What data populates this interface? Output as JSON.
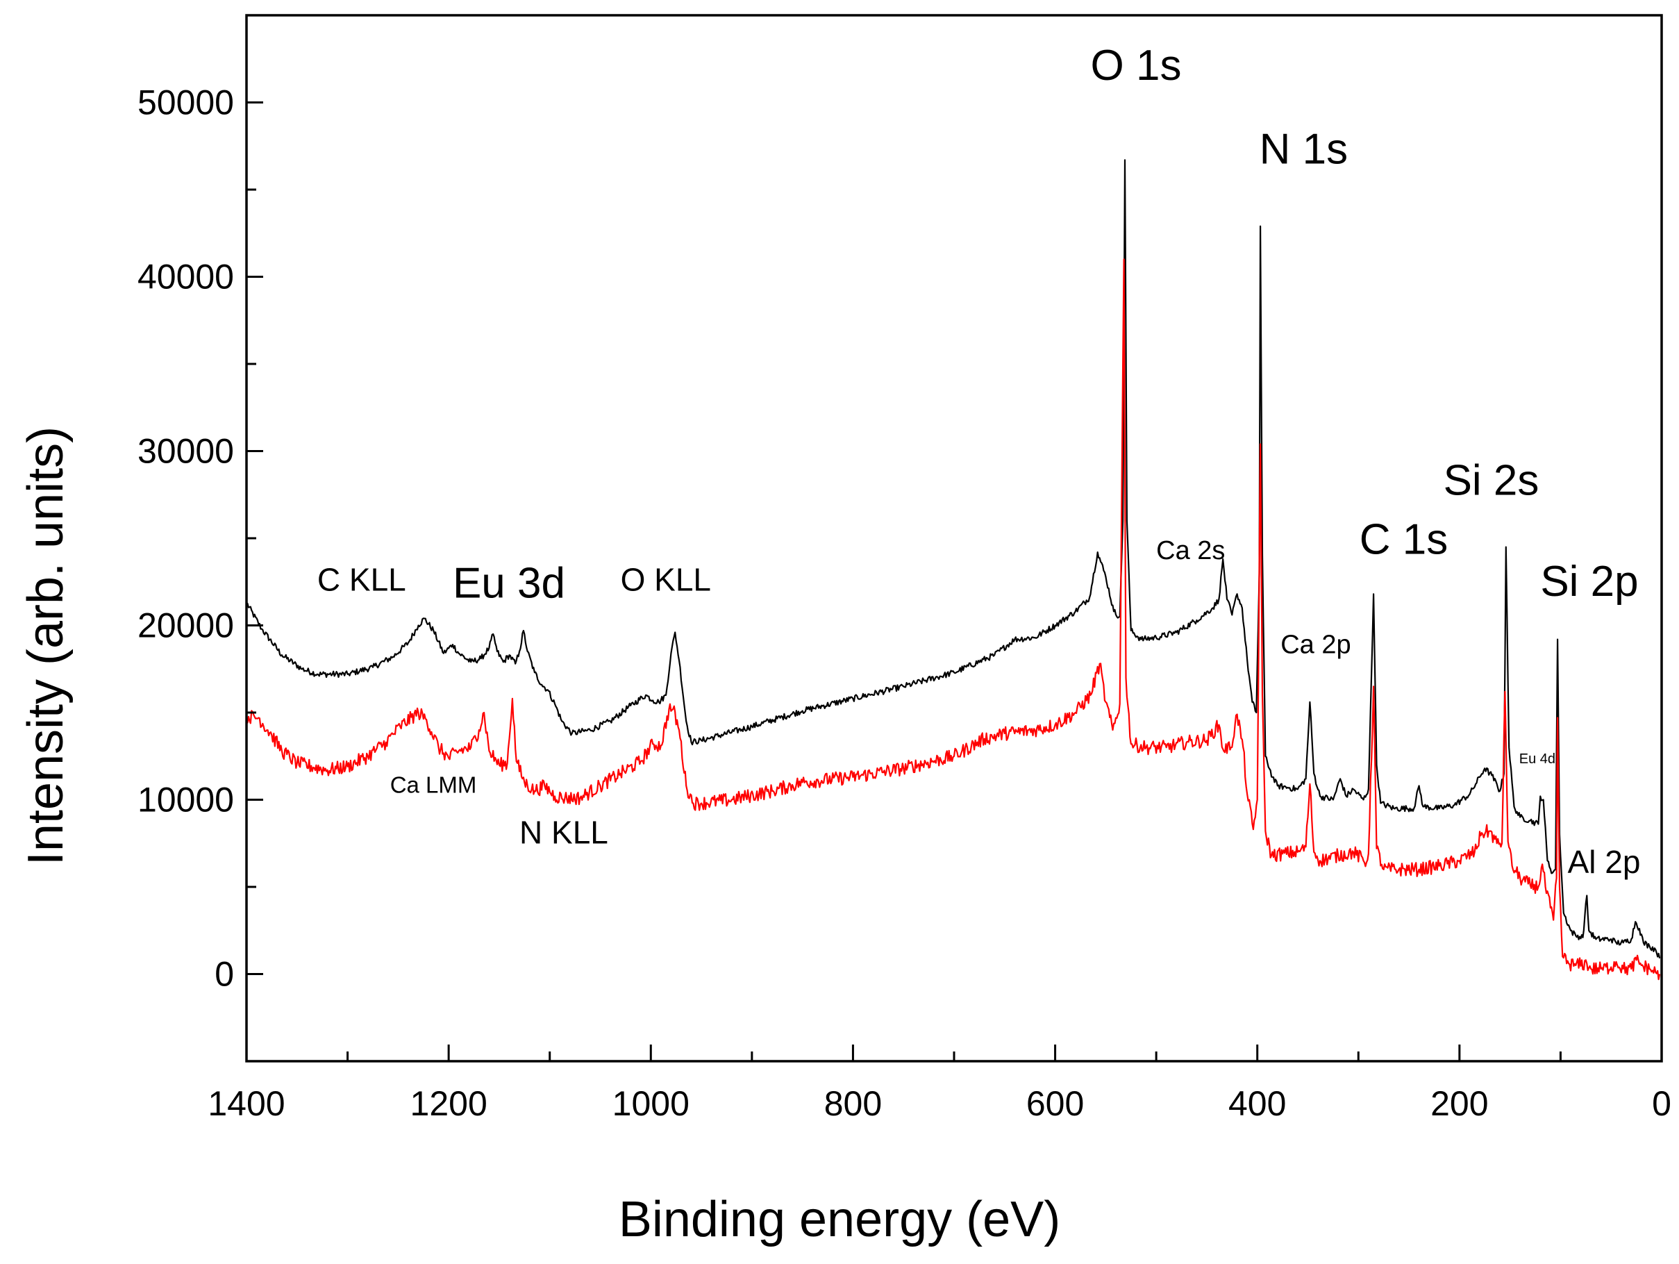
{
  "chart_data": {
    "type": "line",
    "title": "",
    "xlabel": "Binding energy (eV)",
    "ylabel": "Intensity (arb. units)",
    "xlim": [
      1400,
      0
    ],
    "ylim": [
      -5000,
      55000
    ],
    "x_ticks": [
      1400,
      1200,
      1000,
      800,
      600,
      400,
      200,
      0
    ],
    "x_tick_labels": [
      "1400",
      "1200",
      "1000",
      "800",
      "600",
      "400",
      "200",
      "0"
    ],
    "y_ticks": [
      0,
      10000,
      20000,
      30000,
      40000,
      50000
    ],
    "y_tick_labels": [
      "0",
      "10000",
      "20000",
      "30000",
      "40000",
      "50000"
    ],
    "grid": false,
    "series": [
      {
        "name": "black spectrum",
        "color": "#000000",
        "points": [
          [
            1400,
            21300
          ],
          [
            1385,
            19800
          ],
          [
            1365,
            18300
          ],
          [
            1345,
            17500
          ],
          [
            1330,
            17200
          ],
          [
            1300,
            17200
          ],
          [
            1275,
            17600
          ],
          [
            1255,
            18200
          ],
          [
            1240,
            19000
          ],
          [
            1230,
            20000
          ],
          [
            1224,
            20400
          ],
          [
            1215,
            19700
          ],
          [
            1205,
            18400
          ],
          [
            1196,
            18900
          ],
          [
            1190,
            18400
          ],
          [
            1178,
            17900
          ],
          [
            1168,
            18100
          ],
          [
            1160,
            18700
          ],
          [
            1156,
            19500
          ],
          [
            1152,
            18500
          ],
          [
            1146,
            17900
          ],
          [
            1140,
            18300
          ],
          [
            1134,
            17800
          ],
          [
            1130,
            18500
          ],
          [
            1126,
            19700
          ],
          [
            1122,
            18500
          ],
          [
            1115,
            17300
          ],
          [
            1108,
            16600
          ],
          [
            1102,
            16300
          ],
          [
            1095,
            15500
          ],
          [
            1088,
            14500
          ],
          [
            1078,
            13800
          ],
          [
            1060,
            14000
          ],
          [
            1040,
            14500
          ],
          [
            1020,
            15400
          ],
          [
            1005,
            16000
          ],
          [
            998,
            15700
          ],
          [
            992,
            15600
          ],
          [
            985,
            16000
          ],
          [
            980,
            18400
          ],
          [
            976,
            19600
          ],
          [
            972,
            18000
          ],
          [
            965,
            14500
          ],
          [
            960,
            13300
          ],
          [
            950,
            13400
          ],
          [
            900,
            14200
          ],
          [
            850,
            15100
          ],
          [
            800,
            15800
          ],
          [
            750,
            16500
          ],
          [
            700,
            17300
          ],
          [
            660,
            18300
          ],
          [
            640,
            19200
          ],
          [
            620,
            19300
          ],
          [
            600,
            20000
          ],
          [
            580,
            20800
          ],
          [
            566,
            21600
          ],
          [
            558,
            24200
          ],
          [
            550,
            22800
          ],
          [
            542,
            20800
          ],
          [
            536,
            20500
          ],
          [
            533,
            26000
          ],
          [
            531,
            46700
          ],
          [
            529,
            26000
          ],
          [
            525,
            19700
          ],
          [
            515,
            19200
          ],
          [
            500,
            19300
          ],
          [
            480,
            19600
          ],
          [
            460,
            20300
          ],
          [
            444,
            21000
          ],
          [
            438,
            21500
          ],
          [
            434,
            23800
          ],
          [
            430,
            21500
          ],
          [
            425,
            20600
          ],
          [
            420,
            21800
          ],
          [
            415,
            21000
          ],
          [
            410,
            18000
          ],
          [
            405,
            15600
          ],
          [
            401,
            15000
          ],
          [
            398,
            23000
          ],
          [
            397,
            42900
          ],
          [
            395,
            24000
          ],
          [
            392,
            12500
          ],
          [
            385,
            11300
          ],
          [
            380,
            10800
          ],
          [
            370,
            10700
          ],
          [
            360,
            10600
          ],
          [
            352,
            11200
          ],
          [
            348,
            15600
          ],
          [
            344,
            11500
          ],
          [
            338,
            10200
          ],
          [
            325,
            10000
          ],
          [
            318,
            11200
          ],
          [
            312,
            10200
          ],
          [
            305,
            10600
          ],
          [
            295,
            10000
          ],
          [
            290,
            10600
          ],
          [
            285,
            21800
          ],
          [
            282,
            12000
          ],
          [
            278,
            9800
          ],
          [
            265,
            9500
          ],
          [
            245,
            9500
          ],
          [
            240,
            10800
          ],
          [
            236,
            9600
          ],
          [
            220,
            9500
          ],
          [
            205,
            9700
          ],
          [
            190,
            10300
          ],
          [
            180,
            11300
          ],
          [
            175,
            11800
          ],
          [
            168,
            11400
          ],
          [
            160,
            10500
          ],
          [
            156,
            11500
          ],
          [
            154,
            24500
          ],
          [
            151,
            13000
          ],
          [
            146,
            9600
          ],
          [
            140,
            9000
          ],
          [
            130,
            8800
          ],
          [
            122,
            8600
          ],
          [
            120,
            10200
          ],
          [
            117,
            10000
          ],
          [
            113,
            6500
          ],
          [
            108,
            5800
          ],
          [
            105,
            6000
          ],
          [
            103,
            19200
          ],
          [
            101,
            8000
          ],
          [
            97,
            3500
          ],
          [
            90,
            2500
          ],
          [
            85,
            2200
          ],
          [
            78,
            2100
          ],
          [
            74,
            4500
          ],
          [
            72,
            2500
          ],
          [
            65,
            2000
          ],
          [
            50,
            2000
          ],
          [
            45,
            1800
          ],
          [
            38,
            1800
          ],
          [
            30,
            2000
          ],
          [
            26,
            3000
          ],
          [
            22,
            2600
          ],
          [
            18,
            1800
          ],
          [
            12,
            1600
          ],
          [
            6,
            1400
          ],
          [
            2,
            900
          ]
        ]
      },
      {
        "name": "red spectrum",
        "color": "#ff0000",
        "points": [
          [
            1400,
            14800
          ],
          [
            1388,
            14700
          ],
          [
            1375,
            13700
          ],
          [
            1365,
            12800
          ],
          [
            1350,
            12100
          ],
          [
            1320,
            11700
          ],
          [
            1300,
            11900
          ],
          [
            1280,
            12500
          ],
          [
            1262,
            13300
          ],
          [
            1248,
            14200
          ],
          [
            1230,
            15000
          ],
          [
            1222,
            14600
          ],
          [
            1210,
            13000
          ],
          [
            1200,
            12400
          ],
          [
            1190,
            12800
          ],
          [
            1178,
            13000
          ],
          [
            1170,
            14000
          ],
          [
            1165,
            15000
          ],
          [
            1160,
            12800
          ],
          [
            1150,
            12000
          ],
          [
            1142,
            12100
          ],
          [
            1137,
            15800
          ],
          [
            1133,
            12200
          ],
          [
            1125,
            11000
          ],
          [
            1115,
            10500
          ],
          [
            1105,
            10800
          ],
          [
            1095,
            10200
          ],
          [
            1085,
            10100
          ],
          [
            1070,
            10100
          ],
          [
            1050,
            10800
          ],
          [
            1030,
            11500
          ],
          [
            1010,
            12200
          ],
          [
            998,
            13200
          ],
          [
            990,
            13100
          ],
          [
            982,
            15200
          ],
          [
            978,
            15200
          ],
          [
            972,
            14000
          ],
          [
            965,
            10800
          ],
          [
            958,
            9800
          ],
          [
            950,
            9800
          ],
          [
            920,
            10000
          ],
          [
            880,
            10500
          ],
          [
            850,
            11000
          ],
          [
            800,
            11300
          ],
          [
            750,
            11800
          ],
          [
            700,
            12500
          ],
          [
            670,
            13500
          ],
          [
            650,
            13800
          ],
          [
            620,
            14000
          ],
          [
            600,
            14300
          ],
          [
            580,
            15000
          ],
          [
            565,
            16000
          ],
          [
            556,
            17800
          ],
          [
            550,
            15600
          ],
          [
            543,
            14000
          ],
          [
            536,
            15500
          ],
          [
            532,
            41000
          ],
          [
            530,
            17000
          ],
          [
            525,
            13200
          ],
          [
            510,
            13000
          ],
          [
            490,
            13000
          ],
          [
            470,
            13300
          ],
          [
            450,
            13400
          ],
          [
            438,
            14300
          ],
          [
            434,
            12900
          ],
          [
            426,
            13000
          ],
          [
            420,
            14900
          ],
          [
            414,
            13000
          ],
          [
            410,
            10300
          ],
          [
            404,
            8300
          ],
          [
            400,
            10000
          ],
          [
            397,
            30400
          ],
          [
            395,
            16000
          ],
          [
            392,
            8200
          ],
          [
            386,
            6800
          ],
          [
            375,
            6900
          ],
          [
            360,
            7000
          ],
          [
            352,
            7300
          ],
          [
            348,
            10900
          ],
          [
            344,
            7000
          ],
          [
            338,
            6500
          ],
          [
            320,
            6800
          ],
          [
            305,
            7000
          ],
          [
            292,
            6400
          ],
          [
            290,
            6900
          ],
          [
            285,
            16500
          ],
          [
            282,
            7200
          ],
          [
            275,
            6000
          ],
          [
            260,
            6000
          ],
          [
            240,
            6000
          ],
          [
            220,
            6200
          ],
          [
            200,
            6500
          ],
          [
            185,
            7000
          ],
          [
            178,
            8100
          ],
          [
            170,
            8200
          ],
          [
            163,
            7500
          ],
          [
            158,
            7500
          ],
          [
            155,
            16200
          ],
          [
            152,
            7600
          ],
          [
            148,
            6200
          ],
          [
            140,
            5500
          ],
          [
            130,
            5100
          ],
          [
            122,
            5000
          ],
          [
            118,
            6300
          ],
          [
            115,
            5000
          ],
          [
            110,
            3800
          ],
          [
            107,
            3100
          ],
          [
            104,
            5500
          ],
          [
            103,
            14700
          ],
          [
            101,
            5000
          ],
          [
            98,
            1000
          ],
          [
            92,
            600
          ],
          [
            85,
            500
          ],
          [
            74,
            600
          ],
          [
            70,
            300
          ],
          [
            60,
            300
          ],
          [
            50,
            400
          ],
          [
            45,
            700
          ],
          [
            38,
            300
          ],
          [
            30,
            300
          ],
          [
            25,
            800
          ],
          [
            20,
            500
          ],
          [
            12,
            300
          ],
          [
            6,
            100
          ],
          [
            2,
            0
          ]
        ]
      }
    ],
    "annotations": [
      {
        "text": "O 1s",
        "x": 565,
        "y": 51300,
        "size": "xlarge"
      },
      {
        "text": "N 1s",
        "x": 398,
        "y": 46500,
        "size": "xlarge"
      },
      {
        "text": "Si 2s",
        "x": 216,
        "y": 27500,
        "size": "xlarge"
      },
      {
        "text": "C 1s",
        "x": 299,
        "y": 24100,
        "size": "xlarge"
      },
      {
        "text": "Si 2p",
        "x": 120,
        "y": 21700,
        "size": "xlarge"
      },
      {
        "text": "C KLL",
        "x": 1330,
        "y": 22000,
        "size": "large"
      },
      {
        "text": "Eu 3d",
        "x": 1196,
        "y": 21600,
        "size": "xlarge"
      },
      {
        "text": "O KLL",
        "x": 1030,
        "y": 22000,
        "size": "large"
      },
      {
        "text": "Ca 2s",
        "x": 500,
        "y": 23800,
        "size": "medium"
      },
      {
        "text": "Ca 2p",
        "x": 377,
        "y": 18400,
        "size": "medium"
      },
      {
        "text": "Ca LMM",
        "x": 1258,
        "y": 10400,
        "size": "small"
      },
      {
        "text": "N KLL",
        "x": 1130,
        "y": 7500,
        "size": "large"
      },
      {
        "text": "Eu 4d",
        "x": 141,
        "y": 12100,
        "size": "tiny"
      },
      {
        "text": "Al 2p",
        "x": 93,
        "y": 5800,
        "size": "large"
      }
    ]
  }
}
